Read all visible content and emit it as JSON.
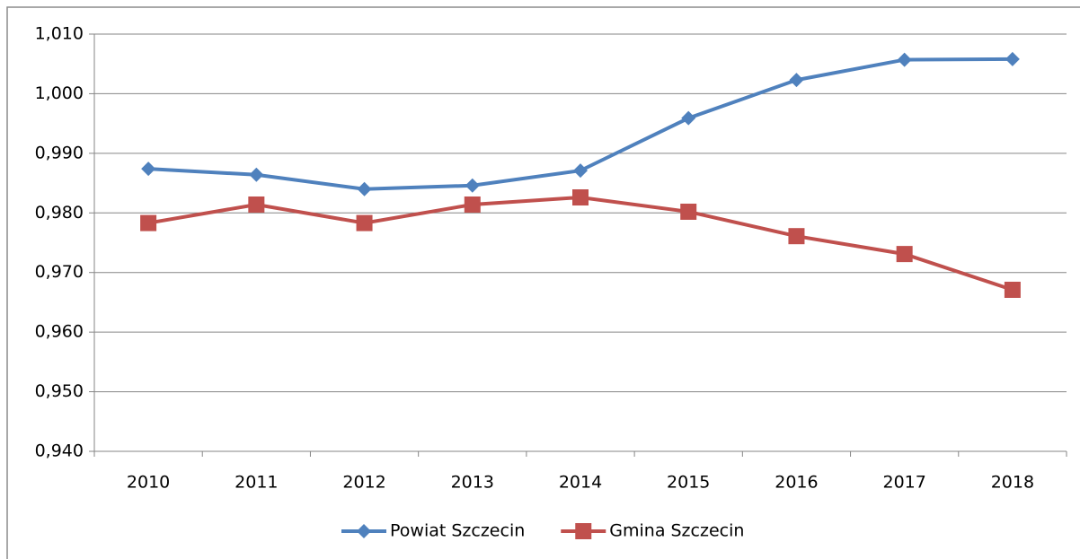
{
  "chart_data": {
    "type": "line",
    "categories": [
      "2010",
      "2011",
      "2012",
      "2013",
      "2014",
      "2015",
      "2016",
      "2017",
      "2018"
    ],
    "series": [
      {
        "name": "Powiat Szczecin",
        "color": "#4f81bd",
        "marker": "diamond",
        "values": [
          0.9874,
          0.9864,
          0.984,
          0.9846,
          0.9871,
          0.9959,
          1.0023,
          1.0057,
          1.0058
        ]
      },
      {
        "name": "Gmina Szczecin",
        "color": "#c0504d",
        "marker": "square",
        "values": [
          0.9783,
          0.9814,
          0.9783,
          0.9814,
          0.9826,
          0.9802,
          0.9761,
          0.9731,
          0.9671
        ]
      }
    ],
    "ylim": [
      0.94,
      1.01
    ],
    "yticks": [
      {
        "value": 0.94,
        "label": "0,940"
      },
      {
        "value": 0.95,
        "label": "0,950"
      },
      {
        "value": 0.96,
        "label": "0,960"
      },
      {
        "value": 0.97,
        "label": "0,970"
      },
      {
        "value": 0.98,
        "label": "0,980"
      },
      {
        "value": 0.99,
        "label": "0,990"
      },
      {
        "value": 1.0,
        "label": "1,000"
      },
      {
        "value": 1.01,
        "label": "1,010"
      }
    ],
    "grid": true,
    "legend": "bottom"
  }
}
